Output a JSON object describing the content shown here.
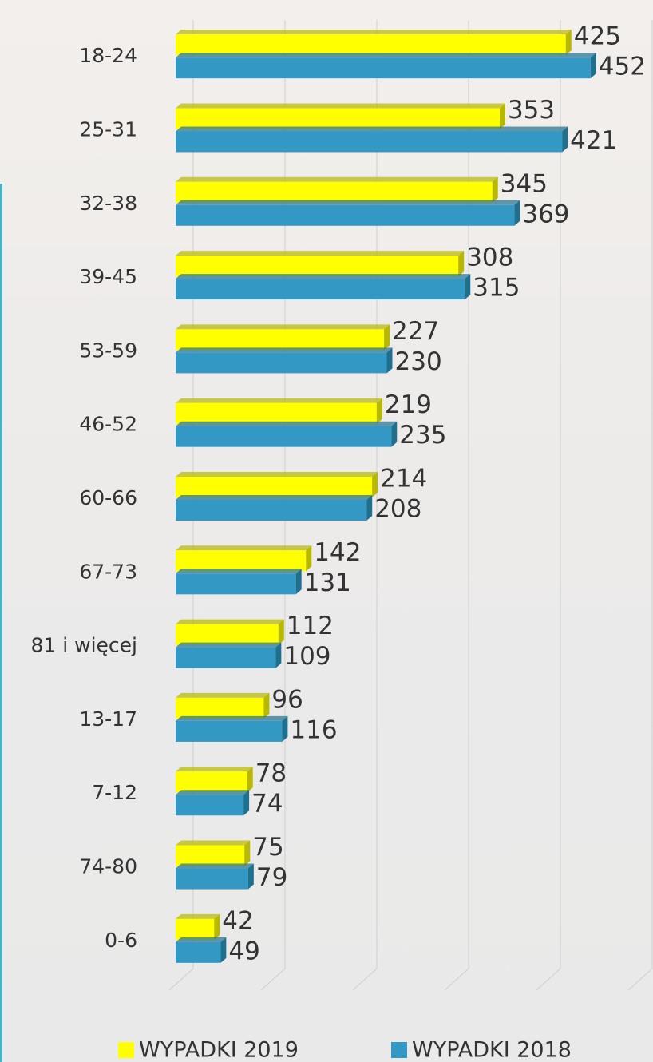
{
  "chart_data": {
    "type": "bar",
    "orientation": "horizontal",
    "categories": [
      "18-24",
      "25-31",
      "32-38",
      "39-45",
      "53-59",
      "46-52",
      "60-66",
      "67-73",
      "81 i więcej",
      "13-17",
      "7-12",
      "74-80",
      "0-6"
    ],
    "series": [
      {
        "name": "WYPADKI 2019",
        "color": "#ffff00",
        "values": [
          425,
          353,
          345,
          308,
          227,
          219,
          214,
          142,
          112,
          96,
          78,
          75,
          42
        ]
      },
      {
        "name": "WYPADKI 2018",
        "color": "#3399c4",
        "values": [
          452,
          421,
          369,
          315,
          230,
          235,
          208,
          131,
          109,
          116,
          74,
          79,
          49
        ]
      }
    ],
    "xlim": [
      0,
      520
    ],
    "xticks": [
      0,
      100,
      200,
      300,
      400,
      500
    ],
    "grid": true,
    "legend": "bottom"
  }
}
